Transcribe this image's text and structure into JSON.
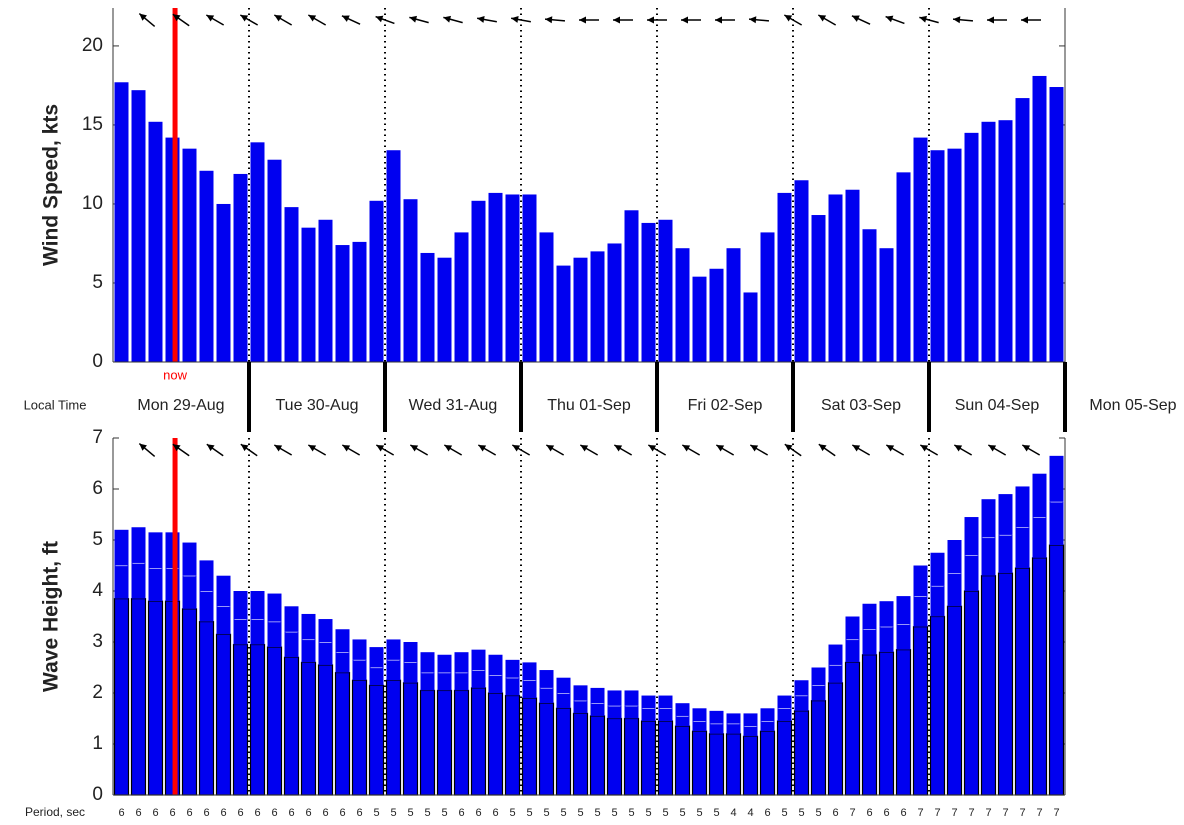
{
  "chart_data": [
    {
      "type": "bar",
      "ylabel": "Wind Speed, kts",
      "color": "#0000f0",
      "ylim": [
        0,
        22.4
      ],
      "yticks": [
        0,
        5,
        10,
        15,
        20
      ],
      "now_label": "now",
      "now_x": 3.65,
      "now_color": "#ff0000",
      "values": [
        17.7,
        17.2,
        15.2,
        14.2,
        13.5,
        12.1,
        10.0,
        11.9,
        13.9,
        12.8,
        9.8,
        8.5,
        9.0,
        7.4,
        7.6,
        10.2,
        13.4,
        10.3,
        6.9,
        6.6,
        8.2,
        10.2,
        10.7,
        10.6,
        10.6,
        8.2,
        6.1,
        6.6,
        7.0,
        7.5,
        9.6,
        8.8,
        9.0,
        7.2,
        5.4,
        5.9,
        7.2,
        4.4,
        8.2,
        10.7,
        11.5,
        9.3,
        10.6,
        10.9,
        8.4,
        7.2,
        12.0,
        14.2,
        13.4,
        13.5,
        14.5,
        15.2,
        15.3,
        16.7,
        18.1,
        17.4
      ],
      "arrow_directions": [
        310,
        305,
        300,
        300,
        300,
        300,
        295,
        290,
        285,
        285,
        280,
        280,
        275,
        270,
        270,
        270,
        270,
        270,
        275,
        300,
        300,
        295,
        290,
        285,
        275,
        270,
        270
      ]
    },
    {
      "type": "stacked_bar",
      "ylabel": "Wave Height, ft",
      "ylim": [
        0,
        7
      ],
      "yticks": [
        0,
        1,
        2,
        3,
        4,
        5,
        6,
        7
      ],
      "now_x": 3.65,
      "now_color": "#ff0000",
      "series": [
        {
          "color": "#0000f0",
          "values": [
            3.85,
            3.85,
            3.8,
            3.8,
            3.65,
            3.4,
            3.15,
            2.95,
            2.95,
            2.9,
            2.7,
            2.6,
            2.55,
            2.4,
            2.25,
            2.15,
            2.25,
            2.2,
            2.05,
            2.05,
            2.05,
            2.1,
            2.0,
            1.95,
            1.9,
            1.8,
            1.7,
            1.6,
            1.55,
            1.5,
            1.5,
            1.45,
            1.45,
            1.35,
            1.25,
            1.2,
            1.2,
            1.15,
            1.25,
            1.45,
            1.65,
            1.85,
            2.2,
            2.6,
            2.75,
            2.8,
            2.85,
            3.3,
            3.5,
            3.7,
            4.0,
            4.3,
            4.35,
            4.45,
            4.65,
            4.9
          ]
        },
        {
          "color": "#0000f0",
          "values": [
            0.65,
            0.7,
            0.65,
            0.65,
            0.65,
            0.6,
            0.55,
            0.5,
            0.5,
            0.5,
            0.5,
            0.45,
            0.45,
            0.4,
            0.4,
            0.35,
            0.4,
            0.4,
            0.35,
            0.35,
            0.35,
            0.35,
            0.35,
            0.35,
            0.35,
            0.3,
            0.3,
            0.25,
            0.25,
            0.25,
            0.25,
            0.25,
            0.25,
            0.2,
            0.2,
            0.2,
            0.2,
            0.2,
            0.2,
            0.25,
            0.3,
            0.3,
            0.35,
            0.45,
            0.5,
            0.5,
            0.5,
            0.6,
            0.6,
            0.65,
            0.7,
            0.75,
            0.75,
            0.8,
            0.8,
            0.85
          ]
        },
        {
          "color": "#0000f0",
          "values": [
            0.7,
            0.7,
            0.7,
            0.7,
            0.65,
            0.6,
            0.6,
            0.55,
            0.55,
            0.55,
            0.5,
            0.5,
            0.45,
            0.45,
            0.4,
            0.4,
            0.4,
            0.4,
            0.4,
            0.35,
            0.4,
            0.4,
            0.4,
            0.35,
            0.35,
            0.35,
            0.3,
            0.3,
            0.3,
            0.3,
            0.3,
            0.25,
            0.25,
            0.25,
            0.25,
            0.25,
            0.2,
            0.25,
            0.25,
            0.25,
            0.3,
            0.35,
            0.4,
            0.45,
            0.5,
            0.5,
            0.55,
            0.6,
            0.65,
            0.65,
            0.75,
            0.75,
            0.8,
            0.8,
            0.85,
            0.9
          ]
        }
      ],
      "arrow_directions": [
        310,
        305,
        305,
        305,
        300,
        300,
        300,
        300,
        300,
        300,
        300,
        300,
        300,
        300,
        300,
        300,
        300,
        300,
        300,
        305,
        305,
        300,
        300,
        300,
        300,
        300,
        300
      ]
    }
  ],
  "time_axis": {
    "label": "Local Time",
    "days": [
      "Mon 29-Aug",
      "Tue 30-Aug",
      "Wed 31-Aug",
      "Thu 01-Sep",
      "Fri 02-Sep",
      "Sat 03-Sep",
      "Sun 04-Sep",
      "Mon 05-Sep"
    ]
  },
  "period": {
    "label": "Period, sec",
    "values": [
      6,
      6,
      6,
      6,
      6,
      6,
      6,
      6,
      6,
      6,
      6,
      6,
      6,
      6,
      6,
      5,
      5,
      5,
      5,
      5,
      6,
      6,
      6,
      5,
      5,
      5,
      5,
      5,
      5,
      5,
      5,
      5,
      5,
      5,
      5,
      5,
      4,
      4,
      6,
      5,
      5,
      5,
      6,
      7,
      6,
      6,
      6,
      7,
      7,
      7,
      7,
      7,
      7,
      7,
      7,
      7
    ]
  }
}
